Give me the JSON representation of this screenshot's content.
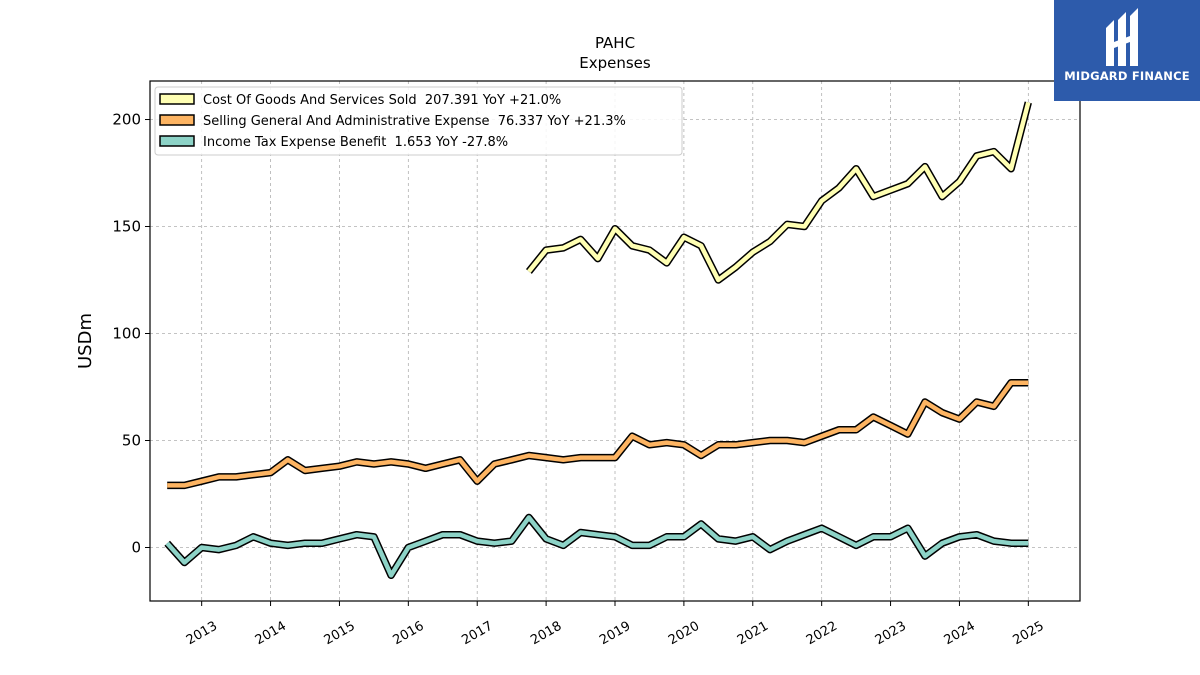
{
  "brand": {
    "name": "MIDGARD FINANCE",
    "color": "#2d5bab",
    "icon": "midgard-logo-icon"
  },
  "chart_data": {
    "type": "line",
    "title": "PAHC",
    "subtitle": "Expenses",
    "xlabel": "",
    "ylabel": "USDm",
    "ylim": [
      -25,
      218
    ],
    "yticks": [
      0,
      50,
      100,
      150,
      200
    ],
    "xticks": [
      "2013",
      "2014",
      "2015",
      "2016",
      "2017",
      "2018",
      "2019",
      "2020",
      "2021",
      "2022",
      "2023",
      "2024",
      "2025"
    ],
    "grid": true,
    "legend_position": "top-left",
    "series": [
      {
        "name": "Cost Of Goods And Services Sold  207.391 YoY +21.0%",
        "color": "#ffffb3",
        "x": [
          2017.75,
          2018.0,
          2018.25,
          2018.5,
          2018.75,
          2019.0,
          2019.25,
          2019.5,
          2019.75,
          2020.0,
          2020.25,
          2020.5,
          2020.75,
          2021.0,
          2021.25,
          2021.5,
          2021.75,
          2022.0,
          2022.25,
          2022.5,
          2022.75,
          2023.0,
          2023.25,
          2023.5,
          2023.75,
          2024.0,
          2024.25,
          2024.5,
          2024.75,
          2025.0
        ],
        "values": [
          129,
          139,
          140,
          144,
          135,
          149,
          141,
          139,
          133,
          145,
          141,
          125,
          131,
          138,
          143,
          151,
          150,
          162,
          168,
          177,
          164,
          167,
          170,
          178,
          164,
          171,
          183,
          185,
          177,
          208
        ]
      },
      {
        "name": "Selling General And Administrative Expense  76.337 YoY +21.3%",
        "color": "#fdb462",
        "x": [
          2012.5,
          2012.75,
          2013.0,
          2013.25,
          2013.5,
          2013.75,
          2014.0,
          2014.25,
          2014.5,
          2014.75,
          2015.0,
          2015.25,
          2015.5,
          2015.75,
          2016.0,
          2016.25,
          2016.5,
          2016.75,
          2017.0,
          2017.25,
          2017.5,
          2017.75,
          2018.0,
          2018.25,
          2018.5,
          2018.75,
          2019.0,
          2019.25,
          2019.5,
          2019.75,
          2020.0,
          2020.25,
          2020.5,
          2020.75,
          2021.0,
          2021.25,
          2021.5,
          2021.75,
          2022.0,
          2022.25,
          2022.5,
          2022.75,
          2023.0,
          2023.25,
          2023.5,
          2023.75,
          2024.0,
          2024.25,
          2024.5,
          2024.75,
          2025.0
        ],
        "values": [
          29,
          29,
          31,
          33,
          33,
          34,
          35,
          41,
          36,
          37,
          38,
          40,
          39,
          40,
          39,
          37,
          39,
          41,
          31,
          39,
          41,
          43,
          42,
          41,
          42,
          42,
          42,
          52,
          48,
          49,
          48,
          43,
          48,
          48,
          49,
          50,
          50,
          49,
          52,
          55,
          55,
          61,
          57,
          53,
          68,
          63,
          60,
          68,
          66,
          77,
          77
        ]
      },
      {
        "name": "Income Tax Expense Benefit  1.653 YoY -27.8%",
        "color": "#8dd3c7",
        "x": [
          2012.5,
          2012.75,
          2013.0,
          2013.25,
          2013.5,
          2013.75,
          2014.0,
          2014.25,
          2014.5,
          2014.75,
          2015.0,
          2015.25,
          2015.5,
          2015.75,
          2016.0,
          2016.25,
          2016.5,
          2016.75,
          2017.0,
          2017.25,
          2017.5,
          2017.75,
          2018.0,
          2018.25,
          2018.5,
          2018.75,
          2019.0,
          2019.25,
          2019.5,
          2019.75,
          2020.0,
          2020.25,
          2020.5,
          2020.75,
          2021.0,
          2021.25,
          2021.5,
          2021.75,
          2022.0,
          2022.25,
          2022.5,
          2022.75,
          2023.0,
          2023.25,
          2023.5,
          2023.75,
          2024.0,
          2024.25,
          2024.5,
          2024.75,
          2025.0
        ],
        "values": [
          2,
          -7,
          0,
          -1,
          1,
          5,
          2,
          1,
          2,
          2,
          4,
          6,
          5,
          -13,
          0,
          3,
          6,
          6,
          3,
          2,
          3,
          14,
          4,
          1,
          7,
          6,
          5,
          1,
          1,
          5,
          5,
          11,
          4,
          3,
          5,
          -1,
          3,
          6,
          9,
          5,
          1,
          5,
          5,
          9,
          -4,
          2,
          5,
          6,
          3,
          2,
          2
        ]
      }
    ]
  }
}
